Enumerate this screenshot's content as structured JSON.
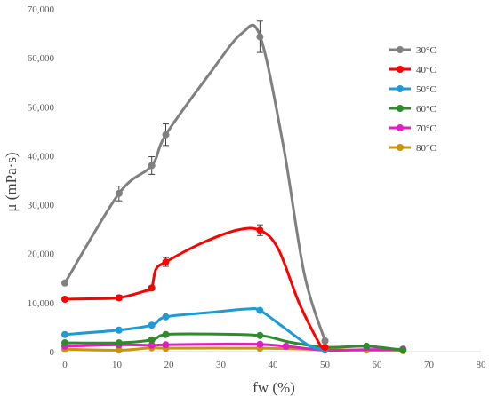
{
  "chart_data": {
    "type": "line",
    "xlabel": "fw (%)",
    "ylabel": "μ (mPa·s)",
    "xlim": [
      0,
      80
    ],
    "ylim": [
      0,
      70000
    ],
    "x_ticks": [
      0,
      10,
      20,
      30,
      40,
      50,
      60,
      70,
      80
    ],
    "y_ticks": [
      0,
      10000,
      20000,
      30000,
      40000,
      50000,
      60000,
      70000
    ],
    "y_tick_labels": [
      "0",
      "10,000",
      "20,000",
      "30,000",
      "40,000",
      "50,000",
      "60,000",
      "70,000"
    ],
    "legend_position": "right",
    "grid": false,
    "series": [
      {
        "name": "30°C",
        "color": "#808080",
        "points": [
          [
            0,
            14000
          ],
          [
            10.4,
            32300
          ],
          [
            16.7,
            38000
          ],
          [
            19.4,
            44300
          ],
          [
            37.5,
            64300
          ],
          [
            50,
            2200
          ]
        ],
        "curve": [
          [
            0,
            14000
          ],
          [
            10.4,
            32300
          ],
          [
            16.7,
            38000
          ],
          [
            19.4,
            44300
          ],
          [
            28,
            57000
          ],
          [
            34,
            65000
          ],
          [
            37.5,
            64500
          ],
          [
            42,
            42000
          ],
          [
            46,
            16000
          ],
          [
            50,
            2200
          ]
        ],
        "error": [
          0,
          1500,
          1800,
          2200,
          3200,
          0
        ]
      },
      {
        "name": "40°C",
        "color": "#ff0000",
        "points": [
          [
            0,
            10700
          ],
          [
            10.4,
            11000
          ],
          [
            16.7,
            13000
          ],
          [
            19.4,
            18300
          ],
          [
            37.5,
            24800
          ],
          [
            50,
            900
          ]
        ],
        "curve": [
          [
            0,
            10700
          ],
          [
            5,
            10800
          ],
          [
            10.4,
            11000
          ],
          [
            15.5,
            12400
          ],
          [
            16.7,
            13000
          ],
          [
            17.5,
            16800
          ],
          [
            19.4,
            18300
          ],
          [
            26,
            22000
          ],
          [
            33,
            24800
          ],
          [
            37.5,
            24800
          ],
          [
            41,
            21000
          ],
          [
            45,
            10000
          ],
          [
            49,
            1500
          ],
          [
            50,
            900
          ]
        ],
        "error": [
          0,
          500,
          400,
          900,
          1100,
          0
        ]
      },
      {
        "name": "50°C",
        "color": "#1e9ad6",
        "points": [
          [
            0,
            3500
          ],
          [
            10.4,
            4400
          ],
          [
            16.7,
            5400
          ],
          [
            19.4,
            7100
          ],
          [
            37.5,
            8400
          ],
          [
            50,
            400
          ]
        ],
        "curve": [
          [
            0,
            3500
          ],
          [
            10.4,
            4400
          ],
          [
            16.7,
            5400
          ],
          [
            19.4,
            7100
          ],
          [
            28,
            8000
          ],
          [
            35,
            8700
          ],
          [
            37.5,
            8400
          ],
          [
            42,
            5000
          ],
          [
            47,
            1200
          ],
          [
            50,
            400
          ]
        ],
        "error": [
          0,
          0,
          0,
          0,
          0,
          0
        ]
      },
      {
        "name": "60°C",
        "color": "#2e8b2e",
        "points": [
          [
            0,
            1800
          ],
          [
            10.4,
            1800
          ],
          [
            16.7,
            2400
          ],
          [
            19.4,
            3500
          ],
          [
            37.5,
            3300
          ],
          [
            58,
            1100
          ],
          [
            65,
            300
          ]
        ],
        "curve": [
          [
            0,
            1800
          ],
          [
            10.4,
            1800
          ],
          [
            16.7,
            2400
          ],
          [
            19.4,
            3500
          ],
          [
            28,
            3600
          ],
          [
            37.5,
            3300
          ],
          [
            43,
            2000
          ],
          [
            50,
            900
          ],
          [
            58,
            1100
          ],
          [
            65,
            300
          ]
        ],
        "error": [
          0,
          0,
          0,
          0,
          0,
          0,
          0
        ]
      },
      {
        "name": "70°C",
        "color": "#e020c0",
        "points": [
          [
            0,
            1100
          ],
          [
            10.4,
            1400
          ],
          [
            16.7,
            1300
          ],
          [
            19.4,
            1400
          ],
          [
            37.5,
            1500
          ],
          [
            42.5,
            1100
          ],
          [
            50,
            300
          ],
          [
            65,
            500
          ]
        ],
        "curve": [
          [
            0,
            1100
          ],
          [
            10.4,
            1400
          ],
          [
            16.7,
            1300
          ],
          [
            19.4,
            1400
          ],
          [
            30,
            1550
          ],
          [
            37.5,
            1500
          ],
          [
            42.5,
            1100
          ],
          [
            50,
            300
          ],
          [
            58,
            400
          ],
          [
            65,
            500
          ]
        ],
        "error": [
          0,
          0,
          0,
          0,
          0,
          0,
          0,
          0
        ]
      },
      {
        "name": "80°C",
        "color": "#c8960a",
        "points": [
          [
            0,
            500
          ],
          [
            10.4,
            300
          ],
          [
            16.7,
            800
          ],
          [
            19.4,
            700
          ],
          [
            37.5,
            700
          ],
          [
            50,
            400
          ],
          [
            58,
            300
          ],
          [
            65,
            200
          ]
        ],
        "curve": [
          [
            0,
            500
          ],
          [
            10.4,
            300
          ],
          [
            16.7,
            800
          ],
          [
            19.4,
            700
          ],
          [
            37.5,
            700
          ],
          [
            50,
            400
          ],
          [
            58,
            300
          ],
          [
            65,
            200
          ]
        ],
        "error": [
          0,
          0,
          0,
          0,
          0,
          0,
          0,
          0
        ]
      }
    ]
  }
}
